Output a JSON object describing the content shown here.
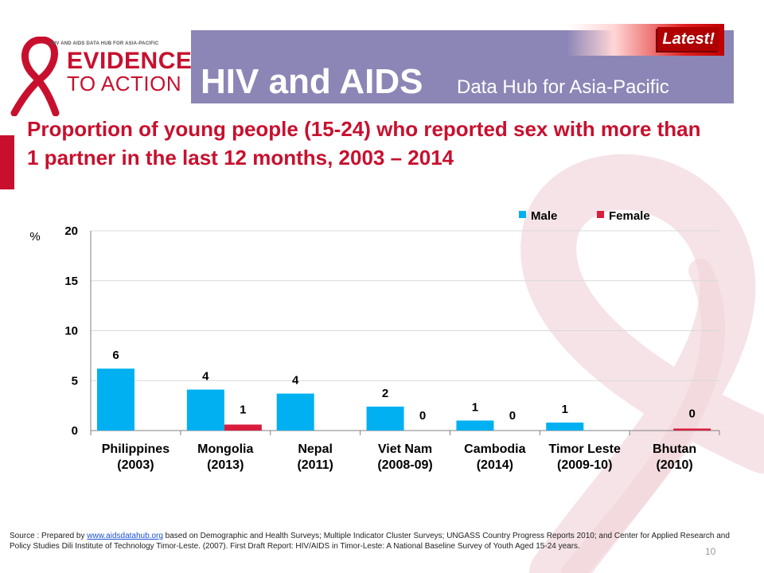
{
  "header": {
    "logo_small_text": "HIV AND AIDS DATA HUB FOR ASIA-PACIFIC",
    "logo_line1": "EVIDENCE",
    "logo_line2": "TO ACTION",
    "hub_title": "HIV and AIDS",
    "hub_subtitle": "Data Hub for Asia-Pacific",
    "badge": "Latest!"
  },
  "title": "Proportion of young people (15-24) who reported sex with more than 1 partner in the last 12 months, 2003 – 2014",
  "source": {
    "prefix": "Source : Prepared by ",
    "link": "www.aidsdatahub.org",
    "suffix": " based on Demographic and Health Surveys; Multiple Indicator Cluster Surveys; UNGASS Country Progress Reports 2010; and Center for Applied Research and Policy Studies Dili Institute of Technology Timor-Leste. (2007). First Draft Report: HIV/AIDS in Timor-Leste: A National Baseline Survey of Youth Aged 15-24 years."
  },
  "page_number": "10",
  "colors": {
    "male": "#00b0f0",
    "female": "#d91d3c",
    "header": "#8c86b6",
    "accent": "#c8102e"
  },
  "chart_data": {
    "type": "bar",
    "ylabel": "%",
    "ylim": [
      0,
      20
    ],
    "yticks": [
      0,
      5,
      10,
      15,
      20
    ],
    "grid": true,
    "legend_position": "top-right",
    "categories": [
      [
        "Philippines",
        "(2003)"
      ],
      [
        "Mongolia",
        "(2013)"
      ],
      [
        "Nepal",
        "(2011)"
      ],
      [
        "Viet Nam",
        "(2008-09)"
      ],
      [
        "Cambodia",
        "(2014)"
      ],
      [
        "Timor Leste",
        "(2009-10)"
      ],
      [
        "Bhutan",
        "(2010)"
      ]
    ],
    "series": [
      {
        "name": "Male",
        "values": [
          6.2,
          4.1,
          3.7,
          2.4,
          1.0,
          0.8,
          null
        ],
        "labels": [
          "6",
          "4",
          "4",
          "2",
          "1",
          "1",
          ""
        ]
      },
      {
        "name": "Female",
        "values": [
          null,
          0.6,
          null,
          0,
          0,
          null,
          0.2
        ],
        "labels": [
          "",
          "1",
          "",
          "0",
          "0",
          "",
          "0"
        ]
      }
    ]
  }
}
